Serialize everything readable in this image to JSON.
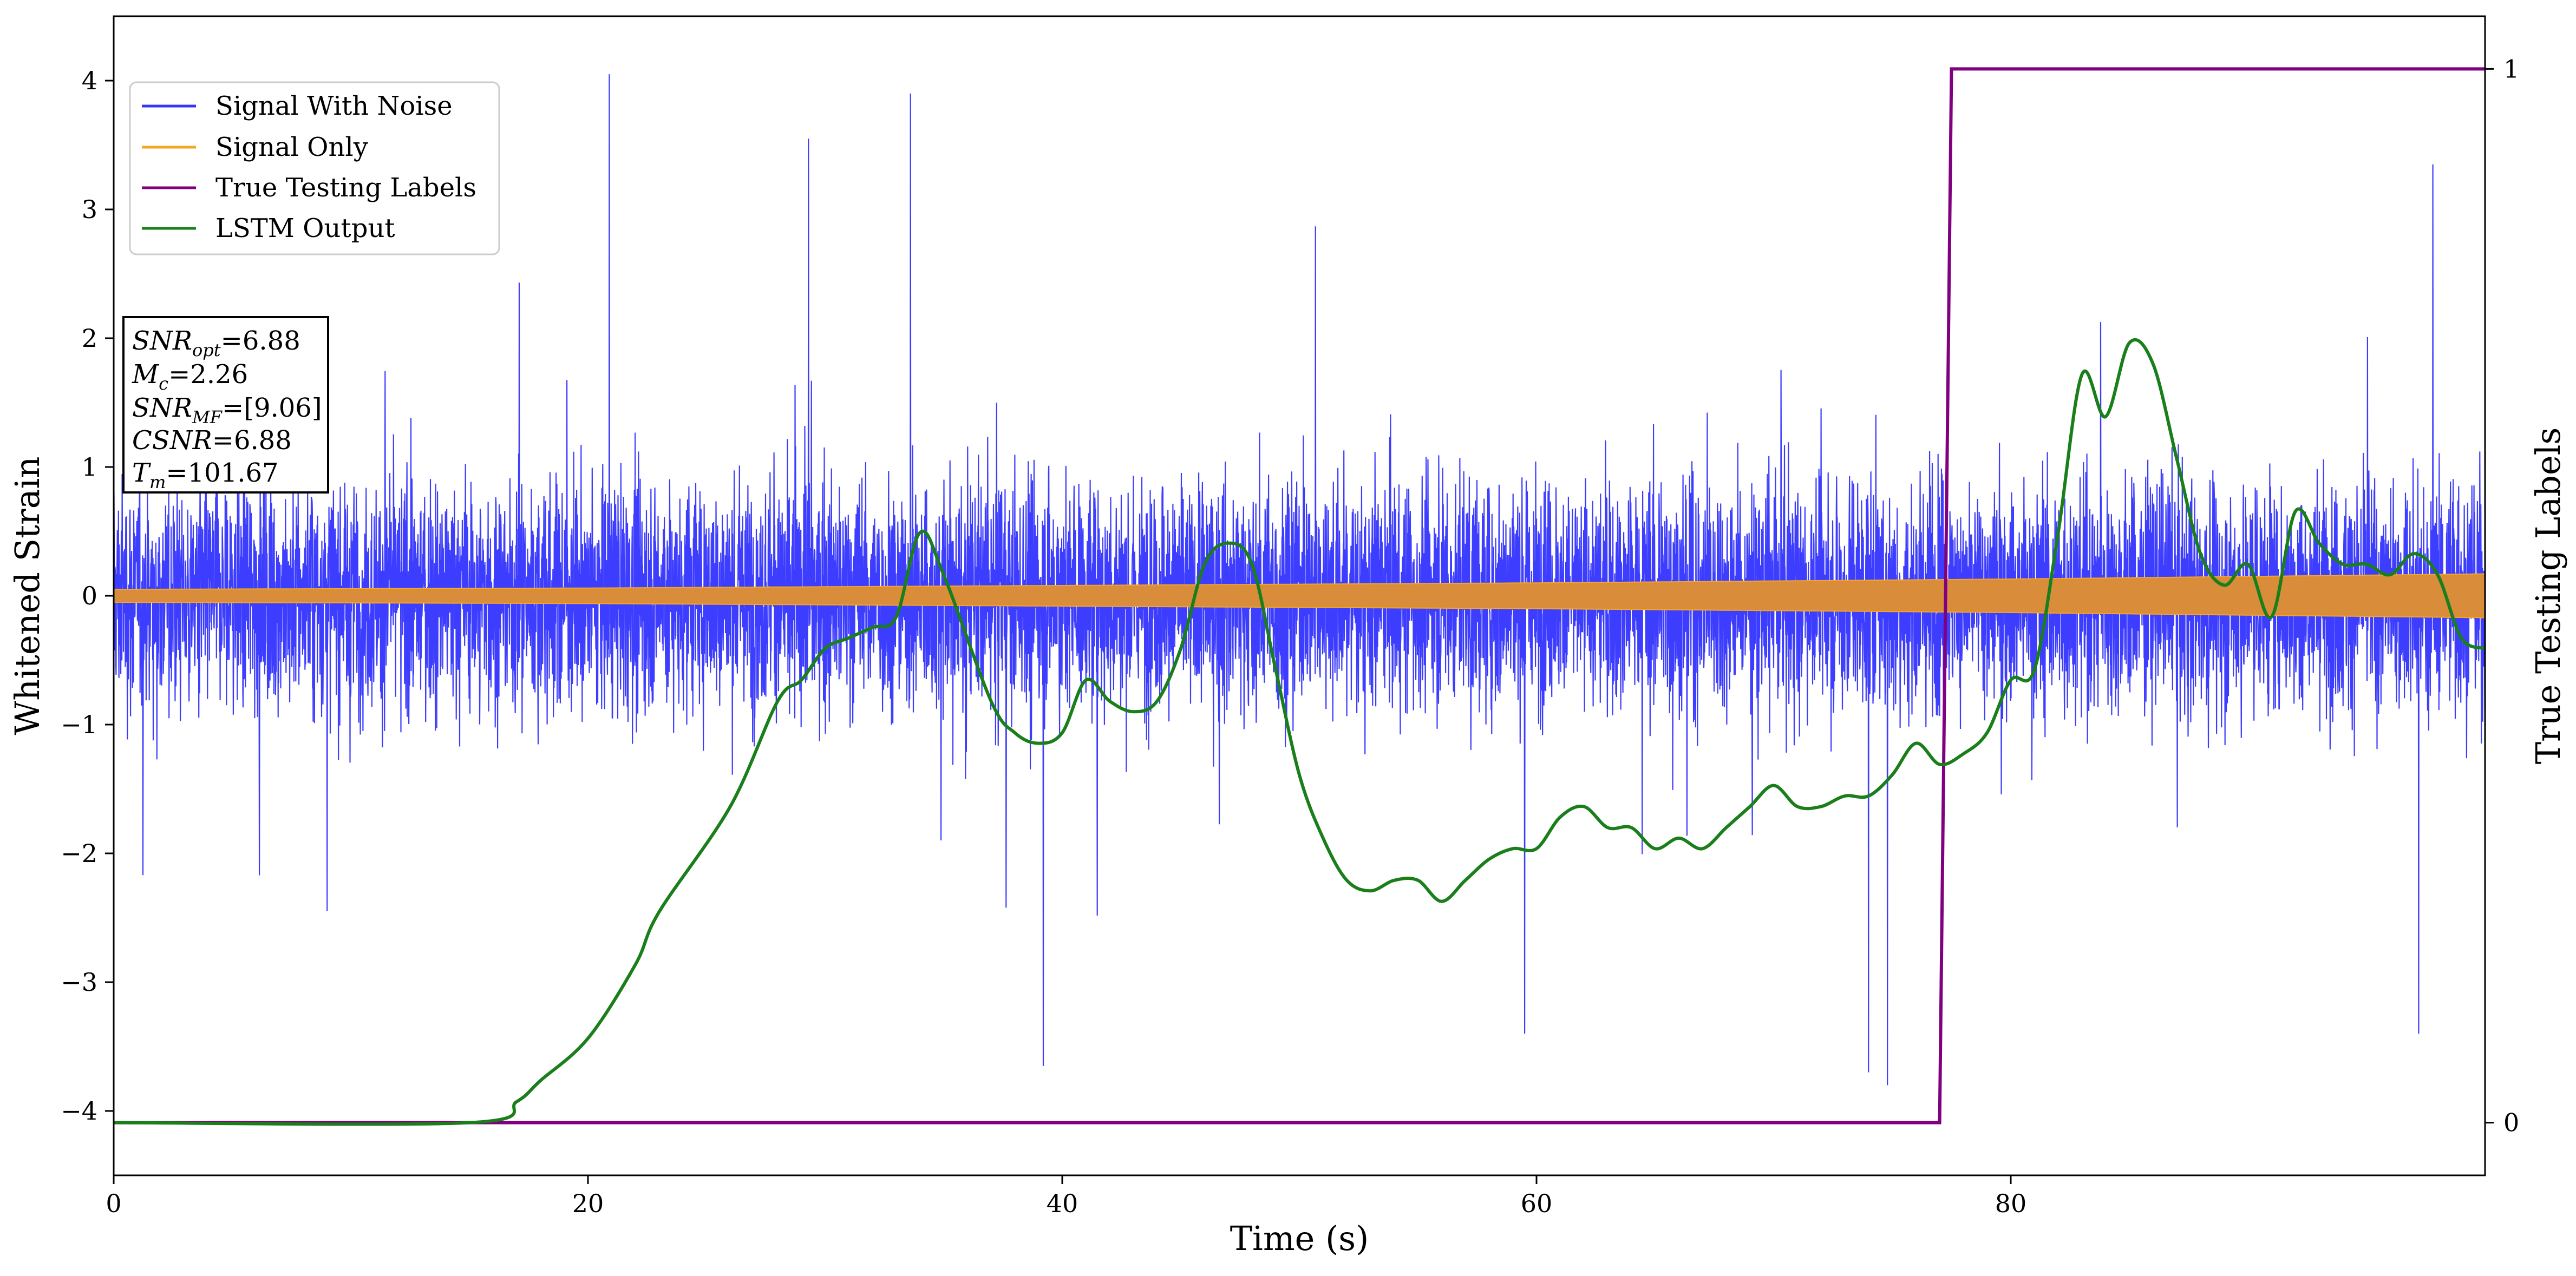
{
  "chart_data": {
    "type": "line",
    "xlabel": "Time (s)",
    "ylabel": "Whitened Strain",
    "ylabel_right": "True Testing Labels",
    "xlim": [
      0,
      100
    ],
    "ylim": [
      -4.5,
      4.5
    ],
    "ylim_right": [
      -0.05,
      1.05
    ],
    "x_ticks": [
      0,
      20,
      40,
      60,
      80
    ],
    "y_ticks": [
      -4,
      -3,
      -2,
      -1,
      0,
      1,
      2,
      3,
      4
    ],
    "y_ticks_right": [
      0,
      1
    ],
    "grid": false,
    "legend_position": "upper-left",
    "colors": {
      "signal_with_noise": "#3333ff",
      "signal_only": "#f5a623",
      "signal_overlap": "#d98c3a",
      "true_labels": "#800080",
      "lstm": "#1a7f1a"
    },
    "series": [
      {
        "name": "Signal With Noise",
        "axis": "left",
        "description_of_values": "dense noisy strain, core band roughly ±1.2, spikes up to about ±4.0",
        "x": [
          0,
          100
        ],
        "envelope_core": [
          -1.2,
          1.2
        ],
        "notable_spikes": [
          {
            "x": 20.9,
            "y": 4.05
          },
          {
            "x": 33.6,
            "y": 3.9
          },
          {
            "x": 29.3,
            "y": 3.55
          },
          {
            "x": 74.8,
            "y": -3.8
          },
          {
            "x": 74.0,
            "y": -3.7
          },
          {
            "x": 39.2,
            "y": -3.65
          },
          {
            "x": 59.5,
            "y": -3.4
          },
          {
            "x": 97.2,
            "y": -3.4
          },
          {
            "x": 97.8,
            "y": 3.35
          }
        ]
      },
      {
        "name": "Signal Only",
        "axis": "left",
        "x": [
          0,
          20,
          40,
          60,
          80,
          100
        ],
        "amplitude": [
          0.05,
          0.06,
          0.08,
          0.1,
          0.13,
          0.17
        ]
      },
      {
        "name": "True Testing Labels",
        "axis": "right",
        "x": [
          0,
          77.0,
          77.5,
          100
        ],
        "values": [
          0,
          0,
          1,
          1
        ]
      },
      {
        "name": "LSTM Output",
        "axis": "right",
        "x": [
          0,
          15,
          17,
          18,
          20,
          22,
          23,
          26,
          28,
          29,
          30,
          31,
          32,
          33,
          34,
          35,
          37,
          38,
          39,
          40,
          41,
          42,
          43,
          44,
          45,
          46,
          47,
          48,
          49,
          50,
          51,
          52,
          53,
          54,
          55,
          56,
          57,
          58,
          59,
          60,
          61,
          62,
          63,
          64,
          65,
          66,
          67,
          68,
          69,
          70,
          71,
          72,
          73,
          74,
          75,
          76,
          77,
          78,
          79,
          80,
          81,
          82,
          83,
          84,
          85,
          86,
          87,
          88,
          89,
          90,
          91,
          92,
          93,
          94,
          95,
          96,
          97,
          98,
          99,
          100
        ],
        "values": [
          0.0,
          0.0,
          0.02,
          0.04,
          0.08,
          0.15,
          0.2,
          0.3,
          0.4,
          0.42,
          0.45,
          0.46,
          0.47,
          0.48,
          0.56,
          0.52,
          0.4,
          0.37,
          0.36,
          0.37,
          0.42,
          0.4,
          0.39,
          0.4,
          0.45,
          0.53,
          0.55,
          0.53,
          0.43,
          0.33,
          0.27,
          0.23,
          0.22,
          0.23,
          0.23,
          0.21,
          0.23,
          0.25,
          0.26,
          0.26,
          0.29,
          0.3,
          0.28,
          0.28,
          0.26,
          0.27,
          0.26,
          0.28,
          0.3,
          0.32,
          0.3,
          0.3,
          0.31,
          0.31,
          0.33,
          0.36,
          0.34,
          0.35,
          0.37,
          0.42,
          0.43,
          0.56,
          0.71,
          0.67,
          0.74,
          0.72,
          0.63,
          0.54,
          0.51,
          0.53,
          0.48,
          0.58,
          0.55,
          0.53,
          0.53,
          0.52,
          0.54,
          0.52,
          0.46,
          0.45
        ]
      }
    ]
  },
  "legend": {
    "items": [
      {
        "label": "Signal With Noise",
        "color": "#3333ff"
      },
      {
        "label": "Signal Only",
        "color": "#f5a623"
      },
      {
        "label": "True Testing Labels",
        "color": "#800080"
      },
      {
        "label": "LSTM Output",
        "color": "#1a7f1a"
      }
    ]
  },
  "info_box": {
    "snr_opt_main": "SNR",
    "snr_opt_sub": "opt",
    "snr_opt_value": "=6.88",
    "mc_main": "M",
    "mc_sub": "c",
    "mc_value": "=2.26",
    "snr_mf_main": "SNR",
    "snr_mf_sub": "MF",
    "snr_mf_value": "=[9.06]",
    "csnr_main": "CSNR",
    "csnr_value": "=6.88",
    "tm_main": "T",
    "tm_sub": "m",
    "tm_value": "=101.67"
  }
}
